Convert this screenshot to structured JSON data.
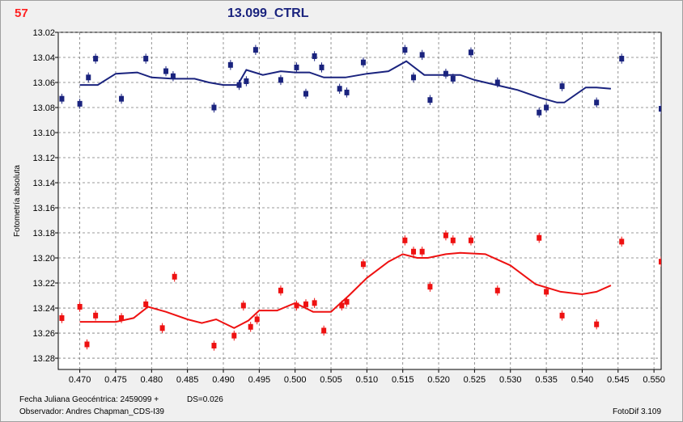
{
  "header": {
    "observation_number": "57",
    "title": "13.099_CTRL"
  },
  "footer": {
    "julian_date": "Fecha Juliana Geocéntrica: 2459099 +",
    "ds": "DS=0.026",
    "observer": "Observador: Andres Chapman_CDS-I39",
    "software": "FotoDif 3.109"
  },
  "chart_data": {
    "type": "scatter",
    "title": "13.099_CTRL",
    "ylabel": "Fotometría absoluta",
    "xlabel": "Fecha Juliana Geocéntrica: 2459099 +",
    "xlim": [
      0.467,
      0.551
    ],
    "ylim": [
      13.02,
      13.289
    ],
    "y_inverted": true,
    "grid": true,
    "x_ticks": [
      "0.470",
      "0.475",
      "0.480",
      "0.485",
      "0.490",
      "0.495",
      "0.500",
      "0.505",
      "0.510",
      "0.515",
      "0.520",
      "0.525",
      "0.530",
      "0.535",
      "0.540",
      "0.545",
      "0.550"
    ],
    "y_ticks": [
      "13.02",
      "13.04",
      "13.06",
      "13.08",
      "13.10",
      "13.12",
      "13.14",
      "13.16",
      "13.18",
      "13.20",
      "13.22",
      "13.24",
      "13.26",
      "13.28"
    ],
    "error": 0.004,
    "series": [
      {
        "color": "#1a237e",
        "points": [
          [
            0.4675,
            13.073
          ],
          [
            0.47,
            13.077
          ],
          [
            0.4712,
            13.056
          ],
          [
            0.4722,
            13.041
          ],
          [
            0.4758,
            13.073
          ],
          [
            0.4792,
            13.041
          ],
          [
            0.482,
            13.051
          ],
          [
            0.483,
            13.055
          ],
          [
            0.4887,
            13.08
          ],
          [
            0.491,
            13.046
          ],
          [
            0.4922,
            13.062
          ],
          [
            0.4932,
            13.059
          ],
          [
            0.4945,
            13.034
          ],
          [
            0.498,
            13.058
          ],
          [
            0.5002,
            13.048
          ],
          [
            0.5015,
            13.069
          ],
          [
            0.5027,
            13.039
          ],
          [
            0.5037,
            13.048
          ],
          [
            0.5062,
            13.065
          ],
          [
            0.5072,
            13.068
          ],
          [
            0.5095,
            13.044
          ],
          [
            0.5153,
            13.034
          ],
          [
            0.5165,
            13.056
          ],
          [
            0.5177,
            13.038
          ],
          [
            0.5188,
            13.074
          ],
          [
            0.521,
            13.053
          ],
          [
            0.522,
            13.057
          ],
          [
            0.5245,
            13.036
          ],
          [
            0.5282,
            13.06
          ],
          [
            0.534,
            13.084
          ],
          [
            0.535,
            13.08
          ],
          [
            0.5372,
            13.063
          ],
          [
            0.542,
            13.076
          ],
          [
            0.5455,
            13.041
          ],
          [
            0.551,
            13.081
          ]
        ],
        "smooth": [
          [
            0.47,
            13.062
          ],
          [
            0.4725,
            13.062
          ],
          [
            0.475,
            13.053
          ],
          [
            0.478,
            13.052
          ],
          [
            0.48,
            13.056
          ],
          [
            0.483,
            13.057
          ],
          [
            0.486,
            13.057
          ],
          [
            0.488,
            13.06
          ],
          [
            0.49,
            13.062
          ],
          [
            0.492,
            13.062
          ],
          [
            0.4932,
            13.05
          ],
          [
            0.4955,
            13.054
          ],
          [
            0.498,
            13.051
          ],
          [
            0.5,
            13.052
          ],
          [
            0.502,
            13.052
          ],
          [
            0.504,
            13.056
          ],
          [
            0.507,
            13.056
          ],
          [
            0.51,
            13.053
          ],
          [
            0.513,
            13.051
          ],
          [
            0.5155,
            13.043
          ],
          [
            0.518,
            13.054
          ],
          [
            0.521,
            13.054
          ],
          [
            0.523,
            13.054
          ],
          [
            0.525,
            13.058
          ],
          [
            0.528,
            13.062
          ],
          [
            0.531,
            13.066
          ],
          [
            0.534,
            13.072
          ],
          [
            0.5365,
            13.076
          ],
          [
            0.5375,
            13.076
          ],
          [
            0.5405,
            13.064
          ],
          [
            0.542,
            13.064
          ],
          [
            0.544,
            13.065
          ]
        ]
      },
      {
        "color": "#ee1111",
        "points": [
          [
            0.4675,
            13.248
          ],
          [
            0.47,
            13.239
          ],
          [
            0.471,
            13.269
          ],
          [
            0.4722,
            13.246
          ],
          [
            0.4758,
            13.248
          ],
          [
            0.4792,
            13.237
          ],
          [
            0.4815,
            13.256
          ],
          [
            0.4832,
            13.215
          ],
          [
            0.4887,
            13.27
          ],
          [
            0.4915,
            13.262
          ],
          [
            0.4928,
            13.238
          ],
          [
            0.4938,
            13.255
          ],
          [
            0.4947,
            13.249
          ],
          [
            0.498,
            13.226
          ],
          [
            0.5002,
            13.238
          ],
          [
            0.5015,
            13.237
          ],
          [
            0.5027,
            13.236
          ],
          [
            0.504,
            13.258
          ],
          [
            0.5065,
            13.238
          ],
          [
            0.5072,
            13.235
          ],
          [
            0.5095,
            13.205
          ],
          [
            0.5153,
            13.186
          ],
          [
            0.5165,
            13.195
          ],
          [
            0.5177,
            13.195
          ],
          [
            0.5188,
            13.223
          ],
          [
            0.521,
            13.182
          ],
          [
            0.522,
            13.186
          ],
          [
            0.5245,
            13.186
          ],
          [
            0.5282,
            13.226
          ],
          [
            0.534,
            13.184
          ],
          [
            0.535,
            13.227
          ],
          [
            0.5372,
            13.246
          ],
          [
            0.542,
            13.253
          ],
          [
            0.5455,
            13.187
          ],
          [
            0.551,
            13.203
          ]
        ],
        "smooth": [
          [
            0.47,
            13.251
          ],
          [
            0.475,
            13.251
          ],
          [
            0.4775,
            13.248
          ],
          [
            0.4795,
            13.239
          ],
          [
            0.482,
            13.243
          ],
          [
            0.485,
            13.249
          ],
          [
            0.487,
            13.252
          ],
          [
            0.489,
            13.249
          ],
          [
            0.4915,
            13.256
          ],
          [
            0.4935,
            13.25
          ],
          [
            0.495,
            13.242
          ],
          [
            0.4975,
            13.242
          ],
          [
            0.5,
            13.236
          ],
          [
            0.5025,
            13.243
          ],
          [
            0.505,
            13.243
          ],
          [
            0.5075,
            13.23
          ],
          [
            0.51,
            13.216
          ],
          [
            0.513,
            13.203
          ],
          [
            0.515,
            13.197
          ],
          [
            0.517,
            13.2
          ],
          [
            0.5185,
            13.2
          ],
          [
            0.521,
            13.197
          ],
          [
            0.523,
            13.196
          ],
          [
            0.5265,
            13.197
          ],
          [
            0.53,
            13.206
          ],
          [
            0.5335,
            13.221
          ],
          [
            0.537,
            13.227
          ],
          [
            0.54,
            13.229
          ],
          [
            0.542,
            13.227
          ],
          [
            0.544,
            13.222
          ]
        ]
      }
    ]
  }
}
